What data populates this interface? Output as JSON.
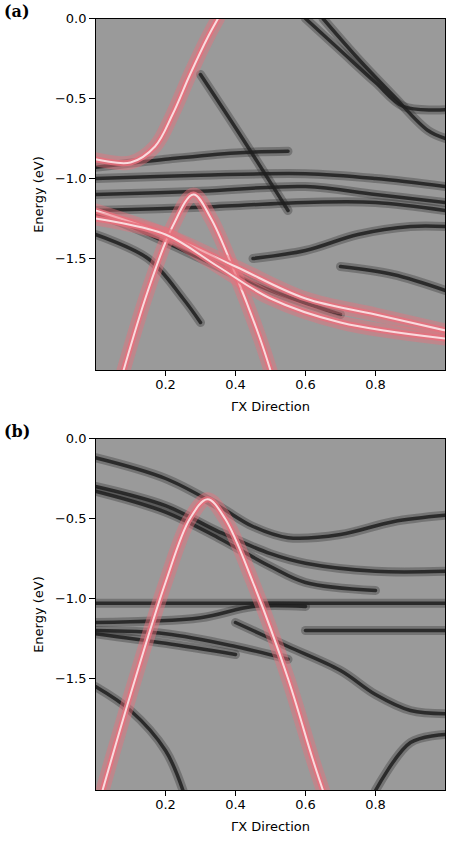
{
  "chart_data": [
    {
      "type": "line",
      "panel_label": "(a)",
      "xlabel": "ΓX Direction",
      "ylabel": "Energy (eV)",
      "xlim": [
        0,
        1
      ],
      "xticks": [
        0.2,
        0.4,
        0.6,
        0.8
      ],
      "ylim": [
        -2.2,
        0
      ],
      "yticks": [
        {
          "value": 0,
          "label": "0.0"
        },
        {
          "value": -0.5,
          "label": "−0.5"
        },
        {
          "value": -1,
          "label": "−1.0"
        },
        {
          "value": -1.5,
          "label": "−1.5"
        }
      ],
      "series": [
        {
          "color": "#1e1e1e",
          "x": [
            0,
            0.2,
            0.4,
            0.55
          ],
          "values": [
            -0.93,
            -0.88,
            -0.84,
            -0.83
          ]
        },
        {
          "color": "#1e1e1e",
          "x": [
            0,
            0.3,
            0.6,
            0.8,
            1
          ],
          "values": [
            -1.0,
            -0.98,
            -0.97,
            -1.0,
            -1.05
          ]
        },
        {
          "color": "#1e1e1e",
          "x": [
            0,
            0.3,
            0.6,
            0.8,
            1
          ],
          "values": [
            -1.1,
            -1.08,
            -1.05,
            -1.1,
            -1.15
          ]
        },
        {
          "color": "#1e1e1e",
          "x": [
            0,
            0.3,
            0.6,
            0.8,
            1
          ],
          "values": [
            -1.2,
            -1.18,
            -1.15,
            -1.15,
            -1.2
          ]
        },
        {
          "color": "#1e1e1e",
          "x": [
            0,
            0.1,
            0.3,
            0.5,
            0.7
          ],
          "values": [
            -1.22,
            -1.3,
            -1.5,
            -1.7,
            -1.85
          ]
        },
        {
          "color": "#1e1e1e",
          "x": [
            0,
            0.15,
            0.25,
            0.3
          ],
          "values": [
            -1.35,
            -1.5,
            -1.75,
            -1.9
          ]
        },
        {
          "color": "#1e1e1e",
          "x": [
            0.45,
            0.6,
            0.75,
            0.9,
            1
          ],
          "values": [
            -1.5,
            -1.45,
            -1.35,
            -1.3,
            -1.3
          ]
        },
        {
          "color": "#1e1e1e",
          "x": [
            0.7,
            0.85,
            1
          ],
          "values": [
            -1.55,
            -1.6,
            -1.7
          ]
        },
        {
          "color": "#1e1e1e",
          "x": [
            0.6,
            0.7,
            0.8,
            0.88,
            1
          ],
          "values": [
            0,
            -0.2,
            -0.4,
            -0.55,
            -0.57
          ]
        },
        {
          "color": "#1e1e1e",
          "x": [
            0.65,
            0.75,
            0.85,
            0.95,
            1
          ],
          "values": [
            0,
            -0.25,
            -0.48,
            -0.7,
            -0.75
          ]
        },
        {
          "color": "#1e1e1e",
          "x": [
            0.3,
            0.42,
            0.55
          ],
          "values": [
            -0.35,
            -0.75,
            -1.2
          ]
        },
        {
          "color": "#e8707c",
          "x": [
            0,
            0.1,
            0.17,
            0.22,
            0.27,
            0.32,
            0.35
          ],
          "values": [
            -0.88,
            -0.9,
            -0.8,
            -0.6,
            -0.35,
            -0.12,
            0
          ]
        },
        {
          "color": "#e8707c",
          "x": [
            0.08,
            0.15,
            0.22,
            0.28,
            0.33,
            0.4,
            0.47,
            0.5
          ],
          "values": [
            -2.2,
            -1.7,
            -1.3,
            -1.1,
            -1.25,
            -1.6,
            -2.0,
            -2.2
          ]
        },
        {
          "color": "#e8707c",
          "x": [
            0,
            0.2,
            0.4,
            0.6,
            0.8,
            1
          ],
          "values": [
            -1.2,
            -1.35,
            -1.55,
            -1.75,
            -1.85,
            -1.95
          ]
        },
        {
          "color": "#e8707c",
          "x": [
            0,
            0.2,
            0.35,
            0.5,
            0.7,
            1
          ],
          "values": [
            -1.25,
            -1.35,
            -1.55,
            -1.75,
            -1.9,
            -2.0
          ]
        }
      ]
    },
    {
      "type": "line",
      "panel_label": "(b)",
      "xlabel": "ΓX Direction",
      "ylabel": "Energy (eV)",
      "xlim": [
        0,
        1
      ],
      "xticks": [
        0.2,
        0.4,
        0.6,
        0.8
      ],
      "ylim": [
        -2.2,
        0
      ],
      "yticks": [
        {
          "value": 0,
          "label": "0.0"
        },
        {
          "value": -0.5,
          "label": "−0.5"
        },
        {
          "value": -1,
          "label": "−1.0"
        },
        {
          "value": -1.5,
          "label": "−1.5"
        }
      ],
      "series": [
        {
          "color": "#1e1e1e",
          "x": [
            0,
            0.2,
            0.35,
            0.45,
            0.55,
            0.7,
            0.85,
            1
          ],
          "values": [
            -0.12,
            -0.25,
            -0.42,
            -0.55,
            -0.62,
            -0.6,
            -0.52,
            -0.48
          ]
        },
        {
          "color": "#1e1e1e",
          "x": [
            0,
            0.2,
            0.35,
            0.5,
            0.6,
            0.8,
            1
          ],
          "values": [
            -0.3,
            -0.42,
            -0.58,
            -0.72,
            -0.78,
            -0.83,
            -0.83
          ]
        },
        {
          "color": "#1e1e1e",
          "x": [
            0,
            0.2,
            0.35,
            0.5,
            0.6,
            0.8
          ],
          "values": [
            -0.33,
            -0.46,
            -0.62,
            -0.8,
            -0.9,
            -0.95
          ]
        },
        {
          "color": "#1e1e1e",
          "x": [
            0,
            0.5,
            1
          ],
          "values": [
            -1.03,
            -1.03,
            -1.03
          ]
        },
        {
          "color": "#1e1e1e",
          "x": [
            0,
            0.3,
            0.45,
            0.6
          ],
          "values": [
            -1.15,
            -1.12,
            -1.05,
            -1.05
          ]
        },
        {
          "color": "#1e1e1e",
          "x": [
            0,
            0.2,
            0.4,
            0.55
          ],
          "values": [
            -1.2,
            -1.22,
            -1.3,
            -1.38
          ]
        },
        {
          "color": "#1e1e1e",
          "x": [
            0,
            0.2,
            0.4
          ],
          "values": [
            -1.22,
            -1.28,
            -1.35
          ]
        },
        {
          "color": "#1e1e1e",
          "x": [
            0.4,
            0.55,
            0.7,
            0.8,
            0.9,
            1
          ],
          "values": [
            -1.15,
            -1.3,
            -1.45,
            -1.6,
            -1.7,
            -1.72
          ]
        },
        {
          "color": "#1e1e1e",
          "x": [
            0.6,
            0.8,
            1
          ],
          "values": [
            -1.2,
            -1.2,
            -1.2
          ]
        },
        {
          "color": "#1e1e1e",
          "x": [
            0,
            0.1,
            0.2,
            0.25
          ],
          "values": [
            -1.55,
            -1.7,
            -1.95,
            -2.2
          ]
        },
        {
          "color": "#1e1e1e",
          "x": [
            0.8,
            0.9,
            1
          ],
          "values": [
            -2.2,
            -1.9,
            -1.85
          ]
        },
        {
          "color": "#e8707c",
          "x": [
            0.02,
            0.1,
            0.2,
            0.27,
            0.32,
            0.37,
            0.45,
            0.55,
            0.62,
            0.65
          ],
          "values": [
            -2.2,
            -1.6,
            -0.9,
            -0.5,
            -0.38,
            -0.5,
            -0.9,
            -1.5,
            -2.0,
            -2.2
          ]
        }
      ]
    }
  ]
}
